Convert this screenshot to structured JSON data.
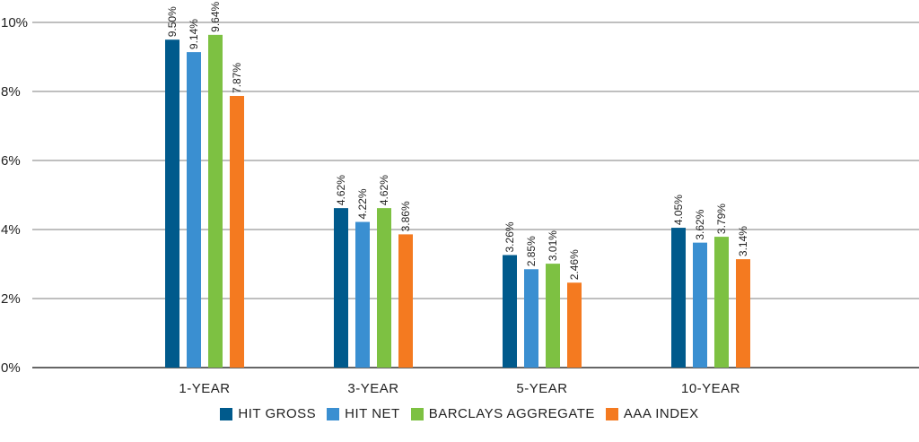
{
  "chart_data": {
    "type": "bar",
    "categories": [
      "1-YEAR",
      "3-YEAR",
      "5-YEAR",
      "10-YEAR"
    ],
    "series": [
      {
        "name": "HIT GROSS",
        "color": "#005a8c",
        "values": [
          9.5,
          4.62,
          3.26,
          4.05
        ],
        "labels": [
          "9.50%",
          "4.62%",
          "3.26%",
          "4.05%"
        ]
      },
      {
        "name": "HIT NET",
        "color": "#3a8fd1",
        "values": [
          9.14,
          4.22,
          2.85,
          3.62
        ],
        "labels": [
          "9.14%",
          "4.22%",
          "2.85%",
          "3.62%"
        ]
      },
      {
        "name": "BARCLAYS AGGREGATE",
        "color": "#7dc142",
        "values": [
          9.64,
          4.62,
          3.01,
          3.79
        ],
        "labels": [
          "9.64%",
          "4.62%",
          "3.01%",
          "3.79%"
        ]
      },
      {
        "name": "AAA INDEX",
        "color": "#f47a20",
        "values": [
          7.87,
          3.86,
          2.46,
          3.14
        ],
        "labels": [
          "7.87%",
          "3.86%",
          "2.46%",
          "3.14%"
        ]
      }
    ],
    "ylim": [
      0,
      10
    ],
    "yticks": [
      0,
      2,
      4,
      6,
      8,
      10
    ],
    "ytick_labels": [
      "0%",
      "2%",
      "4%",
      "6%",
      "8%",
      "10%"
    ],
    "grid": true,
    "legend_position": "bottom-center"
  }
}
